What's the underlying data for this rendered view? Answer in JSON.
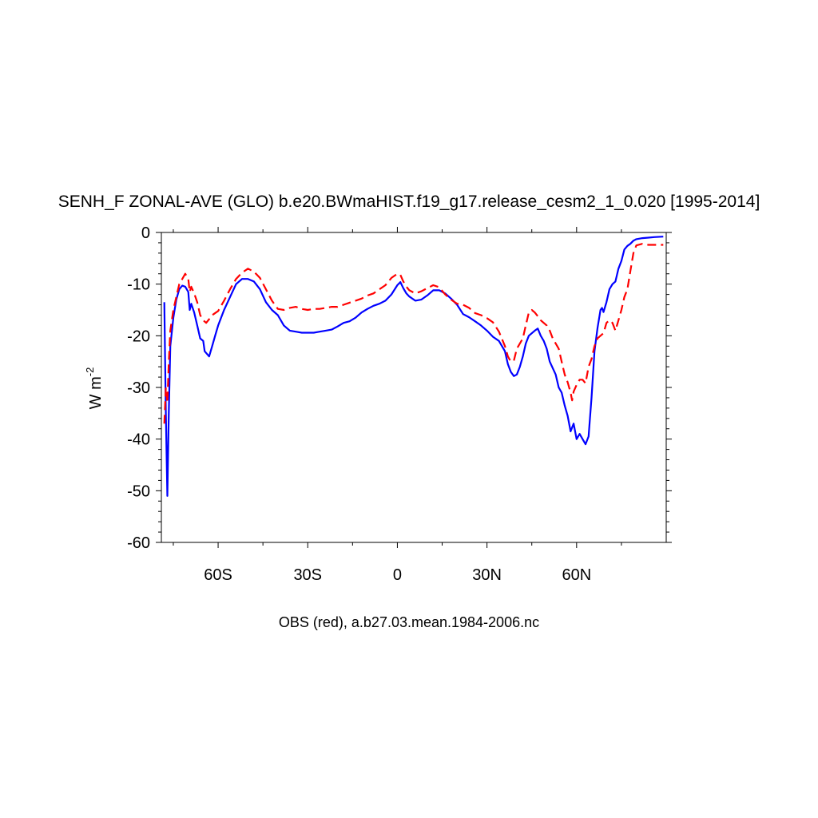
{
  "chart_data": {
    "type": "line",
    "title": "SENH_F ZONAL-AVE (GLO) b.e20.BWmaHIST.f19_g17.release_cesm2_1_0.020 [1995-2014]",
    "ylabel_main": "W m",
    "ylabel_sup": "-2",
    "xlabel": "OBS (red), a.b27.03.mean.1984-2006.nc",
    "xlim": [
      -79,
      90
    ],
    "ylim": [
      -60,
      0
    ],
    "x_ticks": [
      {
        "value": -60,
        "label": "60S"
      },
      {
        "value": -30,
        "label": "30S"
      },
      {
        "value": 0,
        "label": "0"
      },
      {
        "value": 30,
        "label": "30N"
      },
      {
        "value": 60,
        "label": "60N"
      }
    ],
    "y_ticks": [
      {
        "value": 0,
        "label": "0"
      },
      {
        "value": -10,
        "label": "-10"
      },
      {
        "value": -20,
        "label": "-20"
      },
      {
        "value": -30,
        "label": "-30"
      },
      {
        "value": -40,
        "label": "-40"
      },
      {
        "value": -50,
        "label": "-50"
      },
      {
        "value": -60,
        "label": "-60"
      }
    ],
    "grid": false,
    "series": [
      {
        "color": "#0000ff",
        "dash": "solid",
        "points": [
          [
            -78,
            -13.5
          ],
          [
            -77.5,
            -35
          ],
          [
            -77,
            -51
          ],
          [
            -76.5,
            -35
          ],
          [
            -76,
            -22
          ],
          [
            -75,
            -16.5
          ],
          [
            -74,
            -13
          ],
          [
            -73,
            -11
          ],
          [
            -72,
            -10.3
          ],
          [
            -71,
            -10.5
          ],
          [
            -70,
            -11.5
          ],
          [
            -69.5,
            -15
          ],
          [
            -69,
            -13.8
          ],
          [
            -68,
            -15.5
          ],
          [
            -67,
            -18
          ],
          [
            -66,
            -20.5
          ],
          [
            -65,
            -21
          ],
          [
            -64.5,
            -23
          ],
          [
            -63,
            -24
          ],
          [
            -62,
            -22
          ],
          [
            -61,
            -20
          ],
          [
            -60,
            -18
          ],
          [
            -58,
            -15
          ],
          [
            -56,
            -12.5
          ],
          [
            -54,
            -10
          ],
          [
            -52,
            -9
          ],
          [
            -50,
            -9
          ],
          [
            -48,
            -9.5
          ],
          [
            -46,
            -11
          ],
          [
            -44,
            -13.5
          ],
          [
            -42,
            -15
          ],
          [
            -40,
            -16
          ],
          [
            -38,
            -18
          ],
          [
            -36,
            -19
          ],
          [
            -34,
            -19.2
          ],
          [
            -32,
            -19.4
          ],
          [
            -30,
            -19.4
          ],
          [
            -28,
            -19.4
          ],
          [
            -26,
            -19.2
          ],
          [
            -24,
            -19
          ],
          [
            -22,
            -18.8
          ],
          [
            -20,
            -18.2
          ],
          [
            -18,
            -17.5
          ],
          [
            -16,
            -17.2
          ],
          [
            -14,
            -16.5
          ],
          [
            -12,
            -15.5
          ],
          [
            -10,
            -14.8
          ],
          [
            -8,
            -14.2
          ],
          [
            -6,
            -13.8
          ],
          [
            -4,
            -13.2
          ],
          [
            -2,
            -12
          ],
          [
            0,
            -10.2
          ],
          [
            1,
            -9.6
          ],
          [
            2,
            -10.8
          ],
          [
            3,
            -11.8
          ],
          [
            4,
            -12.4
          ],
          [
            6,
            -13.2
          ],
          [
            8,
            -13
          ],
          [
            10,
            -12.2
          ],
          [
            12,
            -11.2
          ],
          [
            14,
            -11.2
          ],
          [
            16,
            -11.8
          ],
          [
            18,
            -12.8
          ],
          [
            20,
            -14
          ],
          [
            22,
            -15.8
          ],
          [
            24,
            -16.4
          ],
          [
            26,
            -17.2
          ],
          [
            28,
            -18
          ],
          [
            30,
            -19
          ],
          [
            32,
            -20.2
          ],
          [
            34,
            -21
          ],
          [
            36,
            -23
          ],
          [
            37,
            -25.5
          ],
          [
            38,
            -27
          ],
          [
            39,
            -27.8
          ],
          [
            40,
            -27.5
          ],
          [
            41,
            -26
          ],
          [
            42,
            -24
          ],
          [
            43,
            -21.5
          ],
          [
            44,
            -20
          ],
          [
            46,
            -19
          ],
          [
            47,
            -18.6
          ],
          [
            48,
            -20
          ],
          [
            49,
            -21
          ],
          [
            50,
            -22.5
          ],
          [
            51,
            -25
          ],
          [
            53,
            -27.5
          ],
          [
            54,
            -30
          ],
          [
            55,
            -31
          ],
          [
            56,
            -33.5
          ],
          [
            57,
            -35.5
          ],
          [
            58,
            -38.5
          ],
          [
            59,
            -37
          ],
          [
            60,
            -40
          ],
          [
            61,
            -39
          ],
          [
            62,
            -40
          ],
          [
            63,
            -41
          ],
          [
            64,
            -39.5
          ],
          [
            65,
            -32
          ],
          [
            66,
            -23
          ],
          [
            67,
            -18.5
          ],
          [
            68,
            -15
          ],
          [
            68.5,
            -14.6
          ],
          [
            69,
            -15.4
          ],
          [
            70,
            -13.5
          ],
          [
            71,
            -11
          ],
          [
            72,
            -10
          ],
          [
            73,
            -9.5
          ],
          [
            74,
            -7
          ],
          [
            75,
            -5.5
          ],
          [
            76,
            -3.3
          ],
          [
            77,
            -2.6
          ],
          [
            78,
            -2.2
          ],
          [
            79,
            -1.6
          ],
          [
            80,
            -1.3
          ],
          [
            82,
            -1.1
          ],
          [
            84,
            -1
          ],
          [
            86,
            -0.9
          ],
          [
            89,
            -0.8
          ]
        ]
      },
      {
        "color": "#ff0000",
        "dash": "dashed",
        "points": [
          [
            -78,
            -37
          ],
          [
            -77.5,
            -30
          ],
          [
            -77,
            -33
          ],
          [
            -76.5,
            -25
          ],
          [
            -76,
            -19
          ],
          [
            -75,
            -15
          ],
          [
            -74,
            -12.5
          ],
          [
            -73,
            -10
          ],
          [
            -72,
            -9
          ],
          [
            -71,
            -8
          ],
          [
            -70,
            -9
          ],
          [
            -69.5,
            -11.5
          ],
          [
            -69,
            -10.5
          ],
          [
            -68,
            -11.8
          ],
          [
            -67,
            -13.5
          ],
          [
            -66,
            -16
          ],
          [
            -65,
            -17
          ],
          [
            -64,
            -17.5
          ],
          [
            -63,
            -16.8
          ],
          [
            -62,
            -16
          ],
          [
            -60,
            -15.2
          ],
          [
            -58,
            -13.2
          ],
          [
            -56,
            -11
          ],
          [
            -54,
            -9
          ],
          [
            -52,
            -7.8
          ],
          [
            -50,
            -7
          ],
          [
            -48,
            -7.6
          ],
          [
            -46,
            -8.8
          ],
          [
            -44,
            -11
          ],
          [
            -42,
            -13.2
          ],
          [
            -40,
            -14.8
          ],
          [
            -38,
            -15
          ],
          [
            -36,
            -14.6
          ],
          [
            -34,
            -14.4
          ],
          [
            -32,
            -14.8
          ],
          [
            -30,
            -15
          ],
          [
            -28,
            -14.8
          ],
          [
            -26,
            -14.8
          ],
          [
            -24,
            -14.6
          ],
          [
            -22,
            -14.4
          ],
          [
            -20,
            -14.4
          ],
          [
            -18,
            -14
          ],
          [
            -16,
            -13.6
          ],
          [
            -14,
            -13.2
          ],
          [
            -12,
            -12.8
          ],
          [
            -10,
            -12.2
          ],
          [
            -8,
            -11.8
          ],
          [
            -6,
            -11
          ],
          [
            -4,
            -10.2
          ],
          [
            -2,
            -8.8
          ],
          [
            0,
            -8
          ],
          [
            1,
            -8.2
          ],
          [
            2,
            -9.5
          ],
          [
            3,
            -10.5
          ],
          [
            4,
            -11.2
          ],
          [
            6,
            -11.8
          ],
          [
            8,
            -11.4
          ],
          [
            10,
            -10.8
          ],
          [
            12,
            -10.2
          ],
          [
            14,
            -10.6
          ],
          [
            16,
            -12
          ],
          [
            18,
            -13
          ],
          [
            20,
            -13.8
          ],
          [
            22,
            -14
          ],
          [
            24,
            -14.6
          ],
          [
            26,
            -15.6
          ],
          [
            28,
            -16
          ],
          [
            30,
            -16.6
          ],
          [
            32,
            -17.4
          ],
          [
            34,
            -19.2
          ],
          [
            36,
            -22
          ],
          [
            37,
            -24
          ],
          [
            38,
            -25
          ],
          [
            39,
            -24.8
          ],
          [
            40,
            -22.5
          ],
          [
            42,
            -20.5
          ],
          [
            43,
            -18
          ],
          [
            44,
            -15.5
          ],
          [
            45,
            -15
          ],
          [
            46,
            -15.5
          ],
          [
            47,
            -16.2
          ],
          [
            48,
            -17
          ],
          [
            50,
            -18
          ],
          [
            51,
            -19
          ],
          [
            52,
            -20.5
          ],
          [
            54,
            -22.5
          ],
          [
            55,
            -25
          ],
          [
            56,
            -27.5
          ],
          [
            57,
            -29
          ],
          [
            58,
            -31
          ],
          [
            58.5,
            -32.5
          ],
          [
            59,
            -30.8
          ],
          [
            60,
            -29.5
          ],
          [
            61,
            -28.5
          ],
          [
            62,
            -28.5
          ],
          [
            63,
            -29.2
          ],
          [
            64,
            -26
          ],
          [
            65,
            -24.5
          ],
          [
            66,
            -22
          ],
          [
            67,
            -20.5
          ],
          [
            68,
            -20
          ],
          [
            69,
            -19.5
          ],
          [
            70,
            -17.5
          ],
          [
            71,
            -17
          ],
          [
            72,
            -17.5
          ],
          [
            73,
            -19
          ],
          [
            74,
            -17
          ],
          [
            75,
            -15
          ],
          [
            76,
            -12.5
          ],
          [
            77,
            -11
          ],
          [
            78,
            -7.5
          ],
          [
            79,
            -4
          ],
          [
            80,
            -2.5
          ],
          [
            82,
            -2.2
          ],
          [
            84,
            -2.4
          ],
          [
            86,
            -2.4
          ],
          [
            89,
            -2.4
          ]
        ]
      }
    ]
  }
}
